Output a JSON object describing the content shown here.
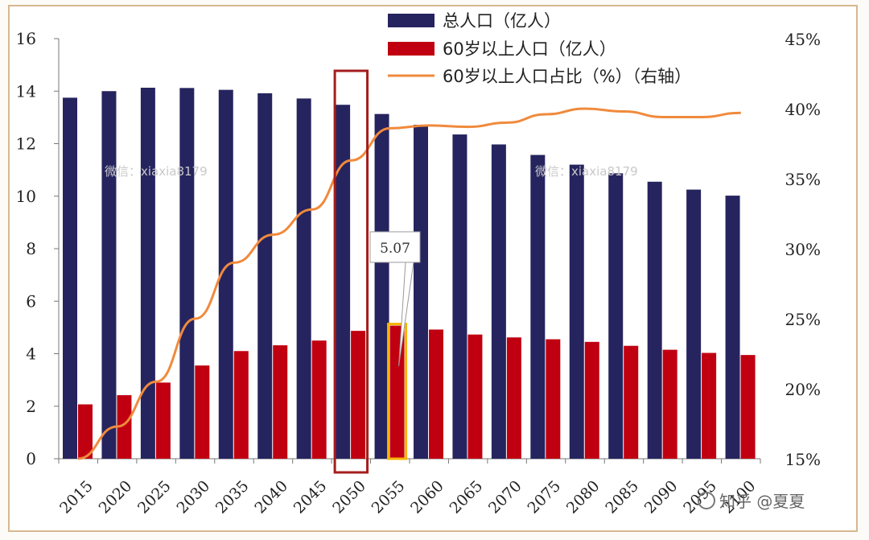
{
  "colors": {
    "total": "#26245e",
    "elderly": "#c00011",
    "ratio": "#f08a3c",
    "highlight_box": "#a51d1d",
    "highlight_bar": "#f5b400"
  },
  "chart_data": {
    "type": "bar",
    "categories": [
      "2015",
      "2020",
      "2025",
      "2030",
      "2035",
      "2040",
      "2045",
      "2050",
      "2055",
      "2060",
      "2065",
      "2070",
      "2075",
      "2080",
      "2085",
      "2090",
      "2095",
      "2100"
    ],
    "series": [
      {
        "name": "总人口（亿人）",
        "type": "bar",
        "axis": "left",
        "values": [
          13.75,
          14.0,
          14.13,
          14.12,
          14.05,
          13.92,
          13.72,
          13.48,
          13.13,
          12.72,
          12.35,
          11.97,
          11.57,
          11.2,
          10.87,
          10.55,
          10.25,
          10.02
        ]
      },
      {
        "name": "60岁以上人口（亿人）",
        "type": "bar",
        "axis": "left",
        "values": [
          2.07,
          2.42,
          2.9,
          3.55,
          4.1,
          4.32,
          4.5,
          4.87,
          5.07,
          4.92,
          4.73,
          4.62,
          4.55,
          4.45,
          4.3,
          4.15,
          4.03,
          3.95
        ]
      },
      {
        "name": "60岁以上人口占比（%）（右轴）",
        "type": "line",
        "axis": "right",
        "values": [
          15.0,
          17.3,
          20.5,
          25.0,
          29.0,
          31.0,
          32.8,
          36.3,
          38.6,
          38.8,
          38.7,
          39.0,
          39.6,
          40.0,
          39.8,
          39.4,
          39.4,
          39.7
        ]
      }
    ],
    "y_left": {
      "min": 0,
      "max": 16,
      "ticks": [
        "0",
        "2",
        "4",
        "6",
        "8",
        "10",
        "12",
        "14",
        "16"
      ]
    },
    "y_right": {
      "min": 15,
      "max": 45,
      "ticks": [
        "15%",
        "20%",
        "25%",
        "30%",
        "35%",
        "40%",
        "45%"
      ]
    },
    "highlight_category": "2050",
    "callout": {
      "category": "2055",
      "label": "5.07"
    },
    "legend_position": "top-right"
  },
  "watermarks": [
    "微信：xiaxia8179",
    "微信：xiaxia8179"
  ],
  "brand": "知乎 @夏夏"
}
